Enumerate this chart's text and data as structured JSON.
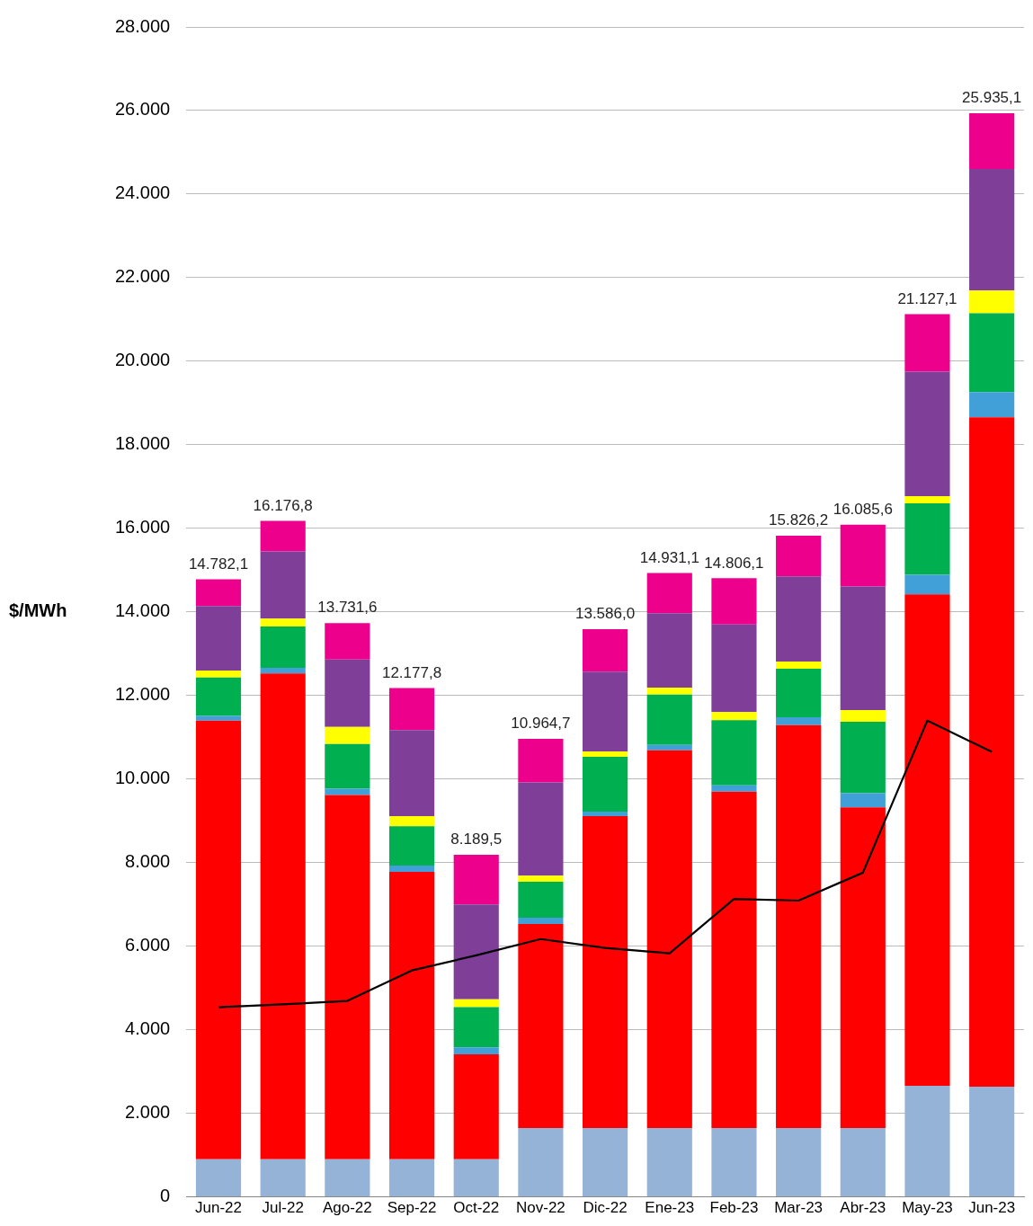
{
  "chart_data": {
    "type": "bar",
    "stacked": true,
    "ylabel": "$/MWh",
    "grid": "y",
    "legend": false,
    "categories": [
      "Jun-22",
      "Jul-22",
      "Ago-22",
      "Sep-22",
      "Oct-22",
      "Nov-22",
      "Dic-22",
      "Ene-23",
      "Feb-23",
      "Mar-23",
      "Abr-23",
      "May-23",
      "Jun-23"
    ],
    "ylim": [
      0,
      28000
    ],
    "yticks": [
      {
        "value": 0,
        "label": "0"
      },
      {
        "value": 2000,
        "label": "2.000"
      },
      {
        "value": 4000,
        "label": "4.000"
      },
      {
        "value": 6000,
        "label": "6.000"
      },
      {
        "value": 8000,
        "label": "8.000"
      },
      {
        "value": 10000,
        "label": "10.000"
      },
      {
        "value": 12000,
        "label": "12.000"
      },
      {
        "value": 14000,
        "label": "14.000"
      },
      {
        "value": 16000,
        "label": "16.000"
      },
      {
        "value": 18000,
        "label": "18.000"
      },
      {
        "value": 20000,
        "label": "20.000"
      },
      {
        "value": 22000,
        "label": "22.000"
      },
      {
        "value": 24000,
        "label": "24.000"
      },
      {
        "value": 26000,
        "label": "26.000"
      },
      {
        "value": 28000,
        "label": "28.000"
      }
    ],
    "series": [
      {
        "color": "#95b3d7",
        "values": [
          900,
          900,
          900,
          900,
          900,
          1650,
          1650,
          1650,
          1650,
          1650,
          1650,
          2660,
          2640
        ]
      },
      {
        "color": "#ff0000",
        "values": [
          10500,
          11630,
          8720,
          6880,
          2510,
          4880,
          7460,
          9040,
          8050,
          9640,
          7670,
          11760,
          16020
        ]
      },
      {
        "color": "#41a0d8",
        "values": [
          110,
          130,
          150,
          150,
          170,
          150,
          110,
          130,
          150,
          190,
          340,
          470,
          600
        ]
      },
      {
        "color": "#00b050",
        "values": [
          920,
          990,
          1070,
          940,
          960,
          860,
          1310,
          1200,
          1560,
          1160,
          1710,
          1710,
          1890
        ]
      },
      {
        "color": "#ffff00",
        "values": [
          170,
          190,
          410,
          240,
          190,
          150,
          130,
          170,
          190,
          170,
          280,
          170,
          540
        ]
      },
      {
        "color": "#7f3f98",
        "values": [
          1540,
          1610,
          1610,
          2060,
          2270,
          2230,
          1910,
          1780,
          2100,
          2040,
          2960,
          2980,
          2910
        ]
      },
      {
        "color": "#ec008c",
        "values": [
          642.1,
          726.8,
          871.6,
          1007.8,
          1189.5,
          1044.7,
          1016.0,
          961.1,
          1106.1,
          976.2,
          1475.6,
          1377.1,
          1335.1
        ]
      },
      {
        "type": "line",
        "color": "#000000",
        "marker": "none",
        "line_style": "solid",
        "values": [
          4540,
          4610,
          4690,
          5420,
          5780,
          6170,
          5960,
          5830,
          7130,
          7090,
          7760,
          11400,
          10650
        ]
      }
    ],
    "totals": [
      "14.782,1",
      "16.176,8",
      "13.731,6",
      "12.177,8",
      "8.189,5",
      "10.964,7",
      "13.586,0",
      "14.931,1",
      "14.806,1",
      "15.826,2",
      "16.085,6",
      "21.127,1",
      "25.935,1"
    ]
  }
}
